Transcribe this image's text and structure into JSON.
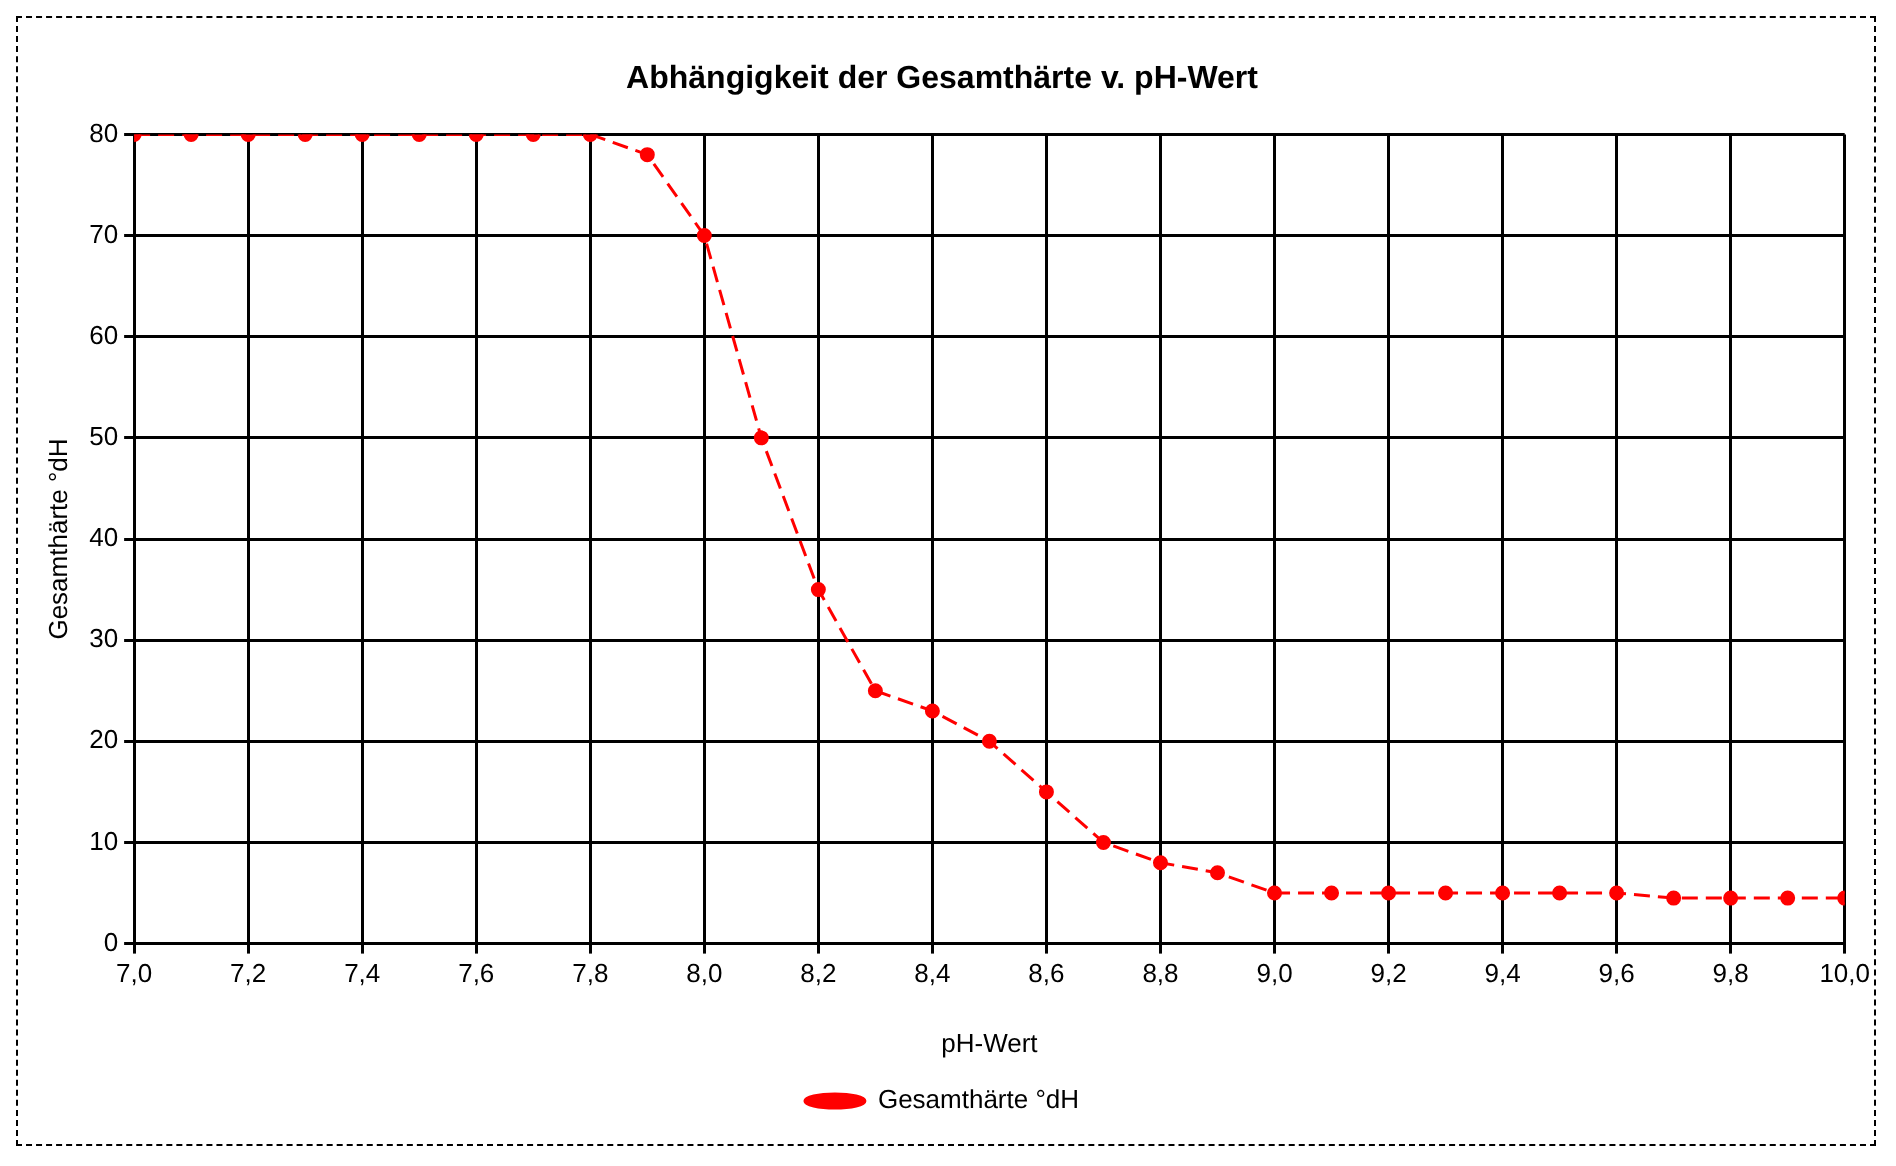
{
  "chart_data": {
    "type": "line",
    "title": "Abhängigkeit der Gesamthärte v. pH-Wert",
    "xlabel": "pH-Wert",
    "ylabel": "Gesamthärte °dH",
    "x": [
      7.0,
      7.1,
      7.2,
      7.3,
      7.4,
      7.5,
      7.6,
      7.7,
      7.8,
      7.9,
      8.0,
      8.1,
      8.2,
      8.3,
      8.4,
      8.5,
      8.6,
      8.7,
      8.8,
      8.9,
      9.0,
      9.1,
      9.2,
      9.3,
      9.4,
      9.5,
      9.6,
      9.7,
      9.8,
      9.9,
      10.0
    ],
    "series": [
      {
        "name": "Gesamthärte °dH",
        "color": "#ff0000",
        "values": [
          80,
          80,
          80,
          80,
          80,
          80,
          80,
          80,
          80,
          78,
          70,
          50,
          35,
          25,
          23,
          20,
          15,
          10,
          8,
          7,
          5,
          5,
          5,
          5,
          5,
          5,
          5,
          4.5,
          4.5,
          4.5,
          4.5
        ]
      }
    ],
    "xlim": [
      7.0,
      10.0
    ],
    "xticks": [
      {
        "value": 7.0,
        "label": "7,0"
      },
      {
        "value": 7.2,
        "label": "7,2"
      },
      {
        "value": 7.4,
        "label": "7,4"
      },
      {
        "value": 7.6,
        "label": "7,6"
      },
      {
        "value": 7.8,
        "label": "7,8"
      },
      {
        "value": 8.0,
        "label": "8,0"
      },
      {
        "value": 8.2,
        "label": "8,2"
      },
      {
        "value": 8.4,
        "label": "8,4"
      },
      {
        "value": 8.6,
        "label": "8,6"
      },
      {
        "value": 8.8,
        "label": "8,8"
      },
      {
        "value": 9.0,
        "label": "9,0"
      },
      {
        "value": 9.2,
        "label": "9,2"
      },
      {
        "value": 9.4,
        "label": "9,4"
      },
      {
        "value": 9.6,
        "label": "9,6"
      },
      {
        "value": 9.8,
        "label": "9,8"
      },
      {
        "value": 10.0,
        "label": "10,0"
      }
    ],
    "ylim": [
      0,
      80
    ],
    "yticks": [
      0,
      10,
      20,
      30,
      40,
      50,
      60,
      70,
      80
    ],
    "grid": true,
    "legend": "bottom",
    "marker": "circle",
    "line_style": "dashed"
  }
}
